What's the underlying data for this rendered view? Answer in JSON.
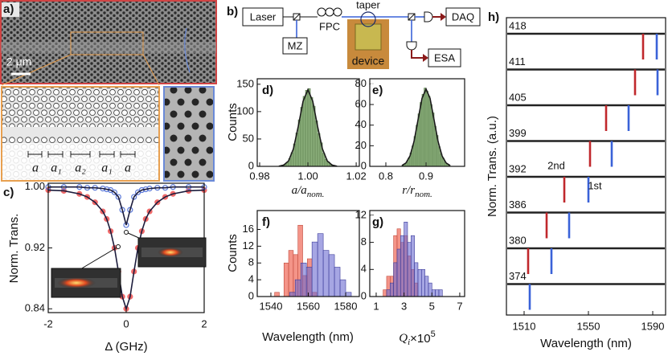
{
  "panel_a": {
    "label": "a)",
    "scale_bar": "2 μm",
    "period_labels": [
      "a",
      "a₁",
      "a₂",
      "a₁",
      "a"
    ]
  },
  "panel_b": {
    "label": "b)",
    "laser": "Laser",
    "mz": "MZ",
    "fpc": "FPC",
    "taper": "taper",
    "device": "device",
    "daq": "DAQ",
    "esa": "ESA"
  },
  "chart_data": [
    {
      "type": "line",
      "label": "c)",
      "xlabel": "Δ (GHz)",
      "ylabel": "Norm. Trans.",
      "x": [
        -2,
        -1.6,
        -1.2,
        -1,
        -0.8,
        -0.6,
        -0.5,
        -0.4,
        -0.3,
        -0.2,
        -0.1,
        0,
        0.1,
        0.2,
        0.3,
        0.4,
        0.5,
        0.6,
        0.8,
        1,
        1.2,
        1.6,
        2
      ],
      "series": [
        {
          "color": "#f06a6a",
          "marker_fill": true,
          "values": [
            0.996,
            0.995,
            0.991,
            0.987,
            0.98,
            0.968,
            0.958,
            0.942,
            0.92,
            0.889,
            0.856,
            0.84,
            0.856,
            0.889,
            0.92,
            0.942,
            0.958,
            0.968,
            0.98,
            0.987,
            0.991,
            0.995,
            0.996
          ]
        },
        {
          "color": "#5a78d8",
          "marker_fill": false,
          "values": [
            1,
            1,
            1,
            0.999,
            0.999,
            0.998,
            0.997,
            0.996,
            0.993,
            0.987,
            0.97,
            0.95,
            0.97,
            0.987,
            0.993,
            0.996,
            0.997,
            0.998,
            0.999,
            0.999,
            1,
            1,
            1
          ]
        }
      ],
      "line_color": "#1c1c3c",
      "xlim": [
        -2,
        2
      ],
      "xticks": [
        -2,
        0,
        2
      ],
      "ylim": [
        0.835,
        1.005
      ],
      "yticks": [
        {
          "value": 1,
          "label": "1.00"
        },
        0.92,
        0.84
      ]
    },
    {
      "type": "histogram",
      "label": "d)",
      "xlabel": {
        "text": "a/a",
        "sub": "nom."
      },
      "ylabel": "Counts",
      "series": [
        {
          "color": "#8aae7a",
          "edge": "#5d7f4f",
          "opacity": 1,
          "bins": [
            0.988,
            0.989,
            0.99,
            0.991,
            0.992,
            0.993,
            0.994,
            0.995,
            0.996,
            0.997,
            0.998,
            0.999,
            1,
            1.001,
            1.002,
            1.003,
            1.004,
            1.005,
            1.006,
            1.007,
            1.008,
            1.009,
            1.01,
            1.011,
            1.012
          ],
          "values": [
            1,
            2,
            4,
            7,
            14,
            25,
            41,
            61,
            85,
            108,
            128,
            139,
            142,
            126,
            110,
            83,
            60,
            43,
            24,
            13,
            8,
            4,
            2,
            1
          ]
        }
      ],
      "fit": {
        "color": "#1a1a1a",
        "x": [
          0.988,
          0.99,
          0.992,
          0.994,
          0.996,
          0.998,
          1,
          1.002,
          1.004,
          1.006,
          1.008,
          1.01,
          1.012
        ],
        "values": [
          0.4,
          2.4,
          10,
          32,
          73,
          119,
          140,
          119,
          73,
          32,
          10,
          2.4,
          0.4
        ]
      },
      "xlim": [
        0.979,
        1.0213
      ],
      "xticks": [
        0.98,
        {
          "value": 1,
          "label": "1.00"
        },
        1.02
      ],
      "ylim": [
        0,
        160
      ],
      "yticks": [
        0,
        50,
        100,
        150
      ]
    },
    {
      "type": "histogram",
      "label": "e)",
      "xlabel": {
        "text": "r/r",
        "sub": "nom."
      },
      "series": [
        {
          "color": "#8aae7a",
          "edge": "#5d7f4f",
          "opacity": 1,
          "bins": [
            0.84,
            0.845,
            0.85,
            0.855,
            0.86,
            0.865,
            0.87,
            0.875,
            0.88,
            0.885,
            0.89,
            0.895,
            0.9,
            0.905,
            0.91,
            0.915,
            0.92,
            0.925,
            0.93,
            0.935,
            0.94,
            0.945,
            0.95,
            0.955,
            0.96
          ],
          "values": [
            1,
            2,
            4,
            8,
            13,
            20,
            29,
            40,
            51,
            62,
            70,
            76,
            73,
            68,
            60,
            52,
            39,
            30,
            19,
            12,
            8,
            4,
            2,
            1
          ]
        }
      ],
      "fit": {
        "color": "#1a1a1a",
        "x": [
          0.84,
          0.85,
          0.86,
          0.87,
          0.88,
          0.89,
          0.9,
          0.91,
          0.92,
          0.93,
          0.94,
          0.95,
          0.96
        ],
        "values": [
          0.8,
          3.3,
          10,
          24,
          45,
          66,
          75,
          66,
          45,
          24,
          10,
          3.3,
          0.8
        ]
      },
      "xlim": [
        0.76,
        0.996
      ],
      "xticks": [
        0.8,
        0.9
      ],
      "ylim": [
        0,
        85
      ],
      "yticks": [
        0,
        20,
        40,
        60,
        80
      ]
    },
    {
      "type": "histogram",
      "label": "f)",
      "xlabel": "Wavelength (nm)",
      "ylabel": "Counts",
      "series": [
        {
          "color": "#f07060",
          "edge": "#c04a3c",
          "opacity": 0.75,
          "bins": [
            1542,
            1544.5,
            1547,
            1549.5,
            1552,
            1554.5,
            1557,
            1559.5,
            1562,
            1564.5
          ],
          "values": [
            1,
            0,
            8,
            11,
            10,
            17,
            5,
            9,
            1
          ]
        },
        {
          "color": "#6a6ad0",
          "edge": "#3c3c9a",
          "opacity": 0.6,
          "bins": [
            1550,
            1553,
            1556,
            1559,
            1562,
            1565,
            1568,
            1571,
            1574,
            1577,
            1580,
            1583
          ],
          "values": [
            1,
            4,
            8,
            7,
            13,
            15,
            11,
            10,
            7,
            4,
            1
          ]
        }
      ],
      "xlim": [
        1532.7,
        1587.3
      ],
      "xticks": [
        1540,
        1560,
        1580
      ],
      "ylim": [
        0,
        20.5
      ],
      "yticks": [
        0,
        4,
        8,
        12,
        16
      ]
    },
    {
      "type": "histogram",
      "label": "g)",
      "xlabel": {
        "text": "Q",
        "sub": "i",
        "tail": "×10",
        "sup": "5"
      },
      "series": [
        {
          "color": "#f07060",
          "edge": "#c04a3c",
          "opacity": 0.75,
          "bins": [
            1.5,
            1.75,
            2,
            2.25,
            2.5,
            2.75,
            3,
            3.25,
            3.5,
            3.75,
            4
          ],
          "values": [
            1,
            3,
            3,
            9,
            10,
            8,
            9,
            6,
            4,
            2
          ]
        },
        {
          "color": "#6a6ad0",
          "edge": "#3c3c9a",
          "opacity": 0.6,
          "bins": [
            1.75,
            2,
            2.25,
            2.5,
            2.75,
            3,
            3.25,
            3.5,
            3.75,
            4,
            4.25,
            4.5,
            4.75,
            5,
            5.25,
            5.5,
            5.75
          ],
          "values": [
            1,
            2,
            5,
            7,
            9,
            11,
            8,
            9,
            5,
            4,
            4,
            3,
            2,
            1,
            1,
            1
          ]
        }
      ],
      "xlim": [
        0.54,
        7.35
      ],
      "xticks": [
        1,
        3,
        5,
        7
      ],
      "ylim": [
        0,
        12.7
      ],
      "yticks": [
        0,
        4,
        8,
        12
      ]
    },
    {
      "type": "spectra",
      "label": "h)",
      "xlabel": "Wavelength (nm)",
      "ylabel": "Norm. Trans. (a.u.)",
      "categories": [
        "418",
        "411",
        "405",
        "399",
        "392",
        "386",
        "380",
        "374"
      ],
      "series": [
        {
          "name": "2nd",
          "color": "#c0282c",
          "values": [
            1584,
            1579,
            1561,
            1551,
            1535,
            1524,
            1512.5,
            null
          ]
        },
        {
          "name": "1st",
          "color": "#3a62d8",
          "values": [
            1592.5,
            1593,
            1575,
            1564.5,
            1550,
            1538,
            1527,
            1513.5
          ]
        }
      ],
      "xlim": [
        1499,
        1598
      ],
      "xticks": [
        1510,
        1550,
        1590
      ]
    }
  ]
}
